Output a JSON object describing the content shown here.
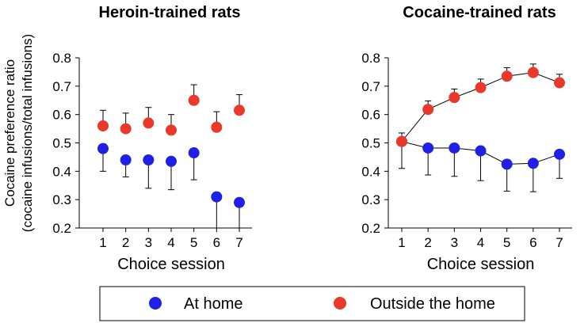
{
  "figure": {
    "ylabel_line1": "Cocaine preference ratio",
    "ylabel_line2": "(cocaine infusions/total infusions)"
  },
  "legend": {
    "items": [
      {
        "label": "At home",
        "color": "#1f1fe6"
      },
      {
        "label": "Outside the home",
        "color": "#e8392a"
      }
    ]
  },
  "chart_data": [
    {
      "type": "scatter",
      "title": "Heroin-trained rats",
      "xlabel": "Choice session",
      "ylabel": "Cocaine preference ratio (cocaine infusions/total infusions)",
      "x": [
        1,
        2,
        3,
        4,
        5,
        6,
        7
      ],
      "ylim": [
        0.2,
        0.8
      ],
      "yticks": [
        0.2,
        0.3,
        0.4,
        0.5,
        0.6,
        0.7,
        0.8
      ],
      "connected": false,
      "series": [
        {
          "name": "At home",
          "color": "#1f1fe6",
          "values": [
            0.48,
            0.44,
            0.44,
            0.435,
            0.465,
            0.31,
            0.29
          ],
          "error": [
            0.08,
            0.06,
            0.1,
            0.1,
            0.095,
            0.11,
            0.09
          ],
          "error_direction": "down"
        },
        {
          "name": "Outside the home",
          "color": "#e8392a",
          "values": [
            0.56,
            0.55,
            0.57,
            0.545,
            0.65,
            0.555,
            0.615
          ],
          "error": [
            0.055,
            0.055,
            0.055,
            0.055,
            0.055,
            0.055,
            0.055
          ],
          "error_direction": "up"
        }
      ]
    },
    {
      "type": "line",
      "title": "Cocaine-trained rats",
      "xlabel": "Choice session",
      "ylabel": "",
      "x": [
        1,
        2,
        3,
        4,
        5,
        6,
        7
      ],
      "ylim": [
        0.2,
        0.8
      ],
      "yticks": [
        0.2,
        0.3,
        0.4,
        0.5,
        0.6,
        0.7,
        0.8
      ],
      "connected": true,
      "series": [
        {
          "name": "At home",
          "color": "#1f1fe6",
          "values": [
            0.505,
            0.482,
            0.482,
            0.472,
            0.425,
            0.428,
            0.46
          ],
          "error": [
            0.095,
            0.095,
            0.1,
            0.105,
            0.095,
            0.1,
            0.085
          ],
          "error_direction": "down"
        },
        {
          "name": "Outside the home",
          "color": "#e8392a",
          "values": [
            0.505,
            0.618,
            0.66,
            0.695,
            0.735,
            0.748,
            0.712
          ],
          "error": [
            0.03,
            0.03,
            0.03,
            0.03,
            0.03,
            0.03,
            0.03
          ],
          "error_direction": "up"
        }
      ]
    }
  ]
}
